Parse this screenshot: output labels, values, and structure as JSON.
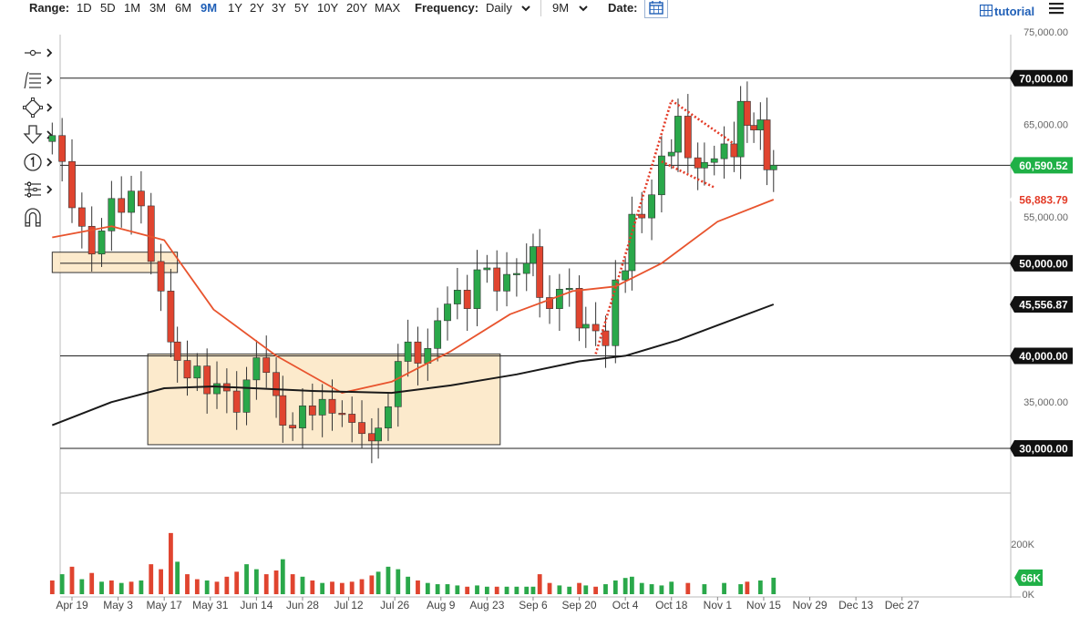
{
  "toolbar": {
    "range_label": "Range:",
    "ranges": [
      "1D",
      "5D",
      "1M",
      "3M",
      "6M",
      "9M",
      "1Y",
      "2Y",
      "3Y",
      "5Y",
      "10Y",
      "20Y",
      "MAX"
    ],
    "active_range": "9M",
    "frequency_label": "Frequency:",
    "frequency_value": "Daily",
    "period_value": "9M",
    "date_label": "Date:",
    "tutorial_label": "tutorial",
    "icons": [
      "chevron-down-icon",
      "calendar-icon",
      "grid-icon",
      "hamburger-menu-icon"
    ]
  },
  "left_tools": [
    "crosshair-tool-icon",
    "fibonacci-tool-icon",
    "shapes-tool-icon",
    "arrow-tool-icon",
    "number-marker-tool-icon",
    "pattern-tool-icon",
    "magnet-icon"
  ],
  "colors": {
    "up": "#2aa84a",
    "down": "#e0442f",
    "sma50": "#e8542e",
    "sma200": "#1a1a1a",
    "zone_fill": "#fbe6c3",
    "zone_stroke": "#333333",
    "label_black": "#111111",
    "label_green": "#1fb046",
    "label_red": "#e33b27"
  },
  "chart_data": {
    "type": "candlestick",
    "x_tick_labels": [
      "Apr 19",
      "May 3",
      "May 17",
      "May 31",
      "Jun 14",
      "Jun 28",
      "Jul 12",
      "Jul 26",
      "Aug 9",
      "Aug 23",
      "Sep 6",
      "Sep 20",
      "Oct 4",
      "Oct 18",
      "Nov 1",
      "Nov 15",
      "Nov 29",
      "Dec 13",
      "Dec 27"
    ],
    "y_tick_labels": [
      "75,000.00",
      "65,000.00",
      "55,000.00",
      "35,000.00"
    ],
    "ylim": [
      25200,
      75500
    ],
    "horizontal_levels": [
      {
        "value": 70000,
        "label": "70,000.00",
        "color": "black"
      },
      {
        "value": 60590.52,
        "label": "60,590.52",
        "color": "green"
      },
      {
        "value": 50000,
        "label": "50,000.00",
        "color": "black"
      },
      {
        "value": 40000,
        "label": "40,000.00",
        "color": "black"
      },
      {
        "value": 30000,
        "label": "30,000.00",
        "color": "black"
      }
    ],
    "indicator_labels": [
      {
        "value": 56883.79,
        "label": "56,883.79",
        "color": "red",
        "series": "SMA 50"
      },
      {
        "value": 45556.87,
        "label": "45,556.87",
        "color": "black",
        "series": "SMA 200"
      }
    ],
    "zones": [
      {
        "from": "Apr 13",
        "to": "May 21",
        "low": 49000,
        "high": 51200
      },
      {
        "from": "May 12",
        "to": "Aug 27",
        "low": 30400,
        "high": 40200
      }
    ],
    "closes": [
      [
        "Apr 13",
        63800
      ],
      [
        "Apr 16",
        61000
      ],
      [
        "Apr 19",
        56000
      ],
      [
        "Apr 22",
        54000
      ],
      [
        "Apr 25",
        51000
      ],
      [
        "Apr 28",
        53500
      ],
      [
        "May 1",
        57000
      ],
      [
        "May 4",
        55500
      ],
      [
        "May 7",
        57800
      ],
      [
        "May 10",
        56200
      ],
      [
        "May 13",
        50200
      ],
      [
        "May 16",
        47000
      ],
      [
        "May 19",
        41500
      ],
      [
        "May 21",
        39500
      ],
      [
        "May 24",
        37600
      ],
      [
        "May 27",
        38900
      ],
      [
        "May 30",
        35900
      ],
      [
        "Jun 2",
        37000
      ],
      [
        "Jun 5",
        36200
      ],
      [
        "Jun 8",
        33900
      ],
      [
        "Jun 11",
        37400
      ],
      [
        "Jun 14",
        39800
      ],
      [
        "Jun 17",
        38200
      ],
      [
        "Jun 20",
        35700
      ],
      [
        "Jun 22",
        32500
      ],
      [
        "Jun 25",
        32200
      ],
      [
        "Jun 28",
        34600
      ],
      [
        "Jul 1",
        33600
      ],
      [
        "Jul 4",
        35300
      ],
      [
        "Jul 7",
        33800
      ],
      [
        "Jul 10",
        33700
      ],
      [
        "Jul 13",
        32800
      ],
      [
        "Jul 16",
        31600
      ],
      [
        "Jul 19",
        30800
      ],
      [
        "Jul 21",
        32200
      ],
      [
        "Jul 24",
        34500
      ],
      [
        "Jul 27",
        39400
      ],
      [
        "Jul 30",
        41500
      ],
      [
        "Aug 2",
        39200
      ],
      [
        "Aug 5",
        40800
      ],
      [
        "Aug 8",
        43800
      ],
      [
        "Aug 11",
        45600
      ],
      [
        "Aug 14",
        47100
      ],
      [
        "Aug 17",
        45100
      ],
      [
        "Aug 20",
        49300
      ],
      [
        "Aug 23",
        49500
      ],
      [
        "Aug 26",
        47000
      ],
      [
        "Aug 29",
        48800
      ],
      [
        "Sep 1",
        48900
      ],
      [
        "Sep 4",
        50000
      ],
      [
        "Sep 6",
        51800
      ],
      [
        "Sep 8",
        46300
      ],
      [
        "Sep 11",
        45100
      ],
      [
        "Sep 14",
        47200
      ],
      [
        "Sep 17",
        47300
      ],
      [
        "Sep 20",
        43000
      ],
      [
        "Sep 22",
        43400
      ],
      [
        "Sep 25",
        42700
      ],
      [
        "Sep 28",
        41100
      ],
      [
        "Oct 1",
        48200
      ],
      [
        "Oct 4",
        49200
      ],
      [
        "Oct 6",
        55300
      ],
      [
        "Oct 9",
        54900
      ],
      [
        "Oct 12",
        57400
      ],
      [
        "Oct 15",
        61600
      ],
      [
        "Oct 18",
        62000
      ],
      [
        "Oct 20",
        65900
      ],
      [
        "Oct 23",
        61400
      ],
      [
        "Oct 26",
        60300
      ],
      [
        "Oct 28",
        60900
      ],
      [
        "Oct 31",
        61300
      ],
      [
        "Nov 3",
        62900
      ],
      [
        "Nov 6",
        61500
      ],
      [
        "Nov 8",
        67500
      ],
      [
        "Nov 10",
        64900
      ],
      [
        "Nov 12",
        64400
      ],
      [
        "Nov 14",
        65500
      ],
      [
        "Nov 16",
        60100
      ],
      [
        "Nov 18",
        60590
      ]
    ],
    "sma50": [
      [
        "Apr 13",
        52800
      ],
      [
        "May 1",
        54000
      ],
      [
        "May 17",
        52500
      ],
      [
        "Jun 1",
        45000
      ],
      [
        "Jun 20",
        40000
      ],
      [
        "Jul 10",
        36000
      ],
      [
        "Jul 25",
        37200
      ],
      [
        "Aug 12",
        40500
      ],
      [
        "Aug 30",
        44500
      ],
      [
        "Sep 18",
        47000
      ],
      [
        "Oct 1",
        47500
      ],
      [
        "Oct 15",
        50000
      ],
      [
        "Nov 1",
        54500
      ],
      [
        "Nov 18",
        56883.79
      ]
    ],
    "sma200": [
      [
        "Apr 13",
        32500
      ],
      [
        "May 1",
        35000
      ],
      [
        "May 17",
        36500
      ],
      [
        "Jun 1",
        36700
      ],
      [
        "Jul 1",
        36200
      ],
      [
        "Jul 25",
        36000
      ],
      [
        "Aug 12",
        36800
      ],
      [
        "Sep 1",
        38000
      ],
      [
        "Sep 20",
        39400
      ],
      [
        "Oct 4",
        40000
      ],
      [
        "Oct 20",
        41700
      ],
      [
        "Nov 1",
        43300
      ],
      [
        "Nov 18",
        45556.87
      ]
    ],
    "volume_axis_labels": [
      "200K",
      "0K"
    ],
    "volume_last_label": "66K",
    "volume_ylim": [
      0,
      260000
    ],
    "volume": [
      [
        "Apr 13",
        55000,
        "down"
      ],
      [
        "Apr 16",
        80000,
        "up"
      ],
      [
        "Apr 19",
        110000,
        "down"
      ],
      [
        "Apr 22",
        60000,
        "up"
      ],
      [
        "Apr 25",
        85000,
        "down"
      ],
      [
        "Apr 28",
        50000,
        "up"
      ],
      [
        "May 1",
        55000,
        "down"
      ],
      [
        "May 4",
        45000,
        "up"
      ],
      [
        "May 7",
        50000,
        "down"
      ],
      [
        "May 10",
        55000,
        "up"
      ],
      [
        "May 13",
        120000,
        "down"
      ],
      [
        "May 16",
        100000,
        "down"
      ],
      [
        "May 19",
        245000,
        "down"
      ],
      [
        "May 21",
        130000,
        "up"
      ],
      [
        "May 24",
        80000,
        "down"
      ],
      [
        "May 27",
        60000,
        "down"
      ],
      [
        "May 30",
        55000,
        "up"
      ],
      [
        "Jun 2",
        50000,
        "down"
      ],
      [
        "Jun 5",
        70000,
        "down"
      ],
      [
        "Jun 8",
        90000,
        "down"
      ],
      [
        "Jun 11",
        120000,
        "up"
      ],
      [
        "Jun 14",
        100000,
        "up"
      ],
      [
        "Jun 17",
        80000,
        "down"
      ],
      [
        "Jun 20",
        95000,
        "down"
      ],
      [
        "Jun 22",
        140000,
        "up"
      ],
      [
        "Jun 25",
        80000,
        "down"
      ],
      [
        "Jun 28",
        70000,
        "up"
      ],
      [
        "Jul 1",
        55000,
        "down"
      ],
      [
        "Jul 4",
        45000,
        "up"
      ],
      [
        "Jul 7",
        50000,
        "down"
      ],
      [
        "Jul 10",
        45000,
        "down"
      ],
      [
        "Jul 13",
        50000,
        "down"
      ],
      [
        "Jul 16",
        60000,
        "down"
      ],
      [
        "Jul 19",
        75000,
        "down"
      ],
      [
        "Jul 21",
        90000,
        "up"
      ],
      [
        "Jul 24",
        110000,
        "up"
      ],
      [
        "Jul 27",
        100000,
        "up"
      ],
      [
        "Jul 30",
        70000,
        "up"
      ],
      [
        "Aug 2",
        55000,
        "down"
      ],
      [
        "Aug 5",
        45000,
        "up"
      ],
      [
        "Aug 8",
        40000,
        "up"
      ],
      [
        "Aug 11",
        40000,
        "up"
      ],
      [
        "Aug 14",
        35000,
        "up"
      ],
      [
        "Aug 17",
        30000,
        "down"
      ],
      [
        "Aug 20",
        35000,
        "up"
      ],
      [
        "Aug 23",
        30000,
        "up"
      ],
      [
        "Aug 26",
        30000,
        "down"
      ],
      [
        "Aug 29",
        30000,
        "up"
      ],
      [
        "Sep 1",
        30000,
        "up"
      ],
      [
        "Sep 4",
        30000,
        "up"
      ],
      [
        "Sep 6",
        30000,
        "up"
      ],
      [
        "Sep 8",
        80000,
        "down"
      ],
      [
        "Sep 11",
        45000,
        "down"
      ],
      [
        "Sep 14",
        35000,
        "up"
      ],
      [
        "Sep 17",
        30000,
        "up"
      ],
      [
        "Sep 20",
        45000,
        "down"
      ],
      [
        "Sep 22",
        35000,
        "up"
      ],
      [
        "Sep 25",
        30000,
        "down"
      ],
      [
        "Sep 28",
        40000,
        "up"
      ],
      [
        "Oct 1",
        55000,
        "up"
      ],
      [
        "Oct 4",
        65000,
        "up"
      ],
      [
        "Oct 6",
        70000,
        "up"
      ],
      [
        "Oct 9",
        45000,
        "up"
      ],
      [
        "Oct 12",
        40000,
        "up"
      ],
      [
        "Oct 15",
        35000,
        "up"
      ],
      [
        "Oct 18",
        50000,
        "up"
      ],
      [
        "Oct 23",
        45000,
        "down"
      ],
      [
        "Oct 28",
        40000,
        "up"
      ],
      [
        "Nov 3",
        45000,
        "up"
      ],
      [
        "Nov 8",
        40000,
        "up"
      ],
      [
        "Nov 10",
        50000,
        "down"
      ],
      [
        "Nov 14",
        55000,
        "up"
      ],
      [
        "Nov 18",
        66000,
        "up"
      ]
    ]
  }
}
